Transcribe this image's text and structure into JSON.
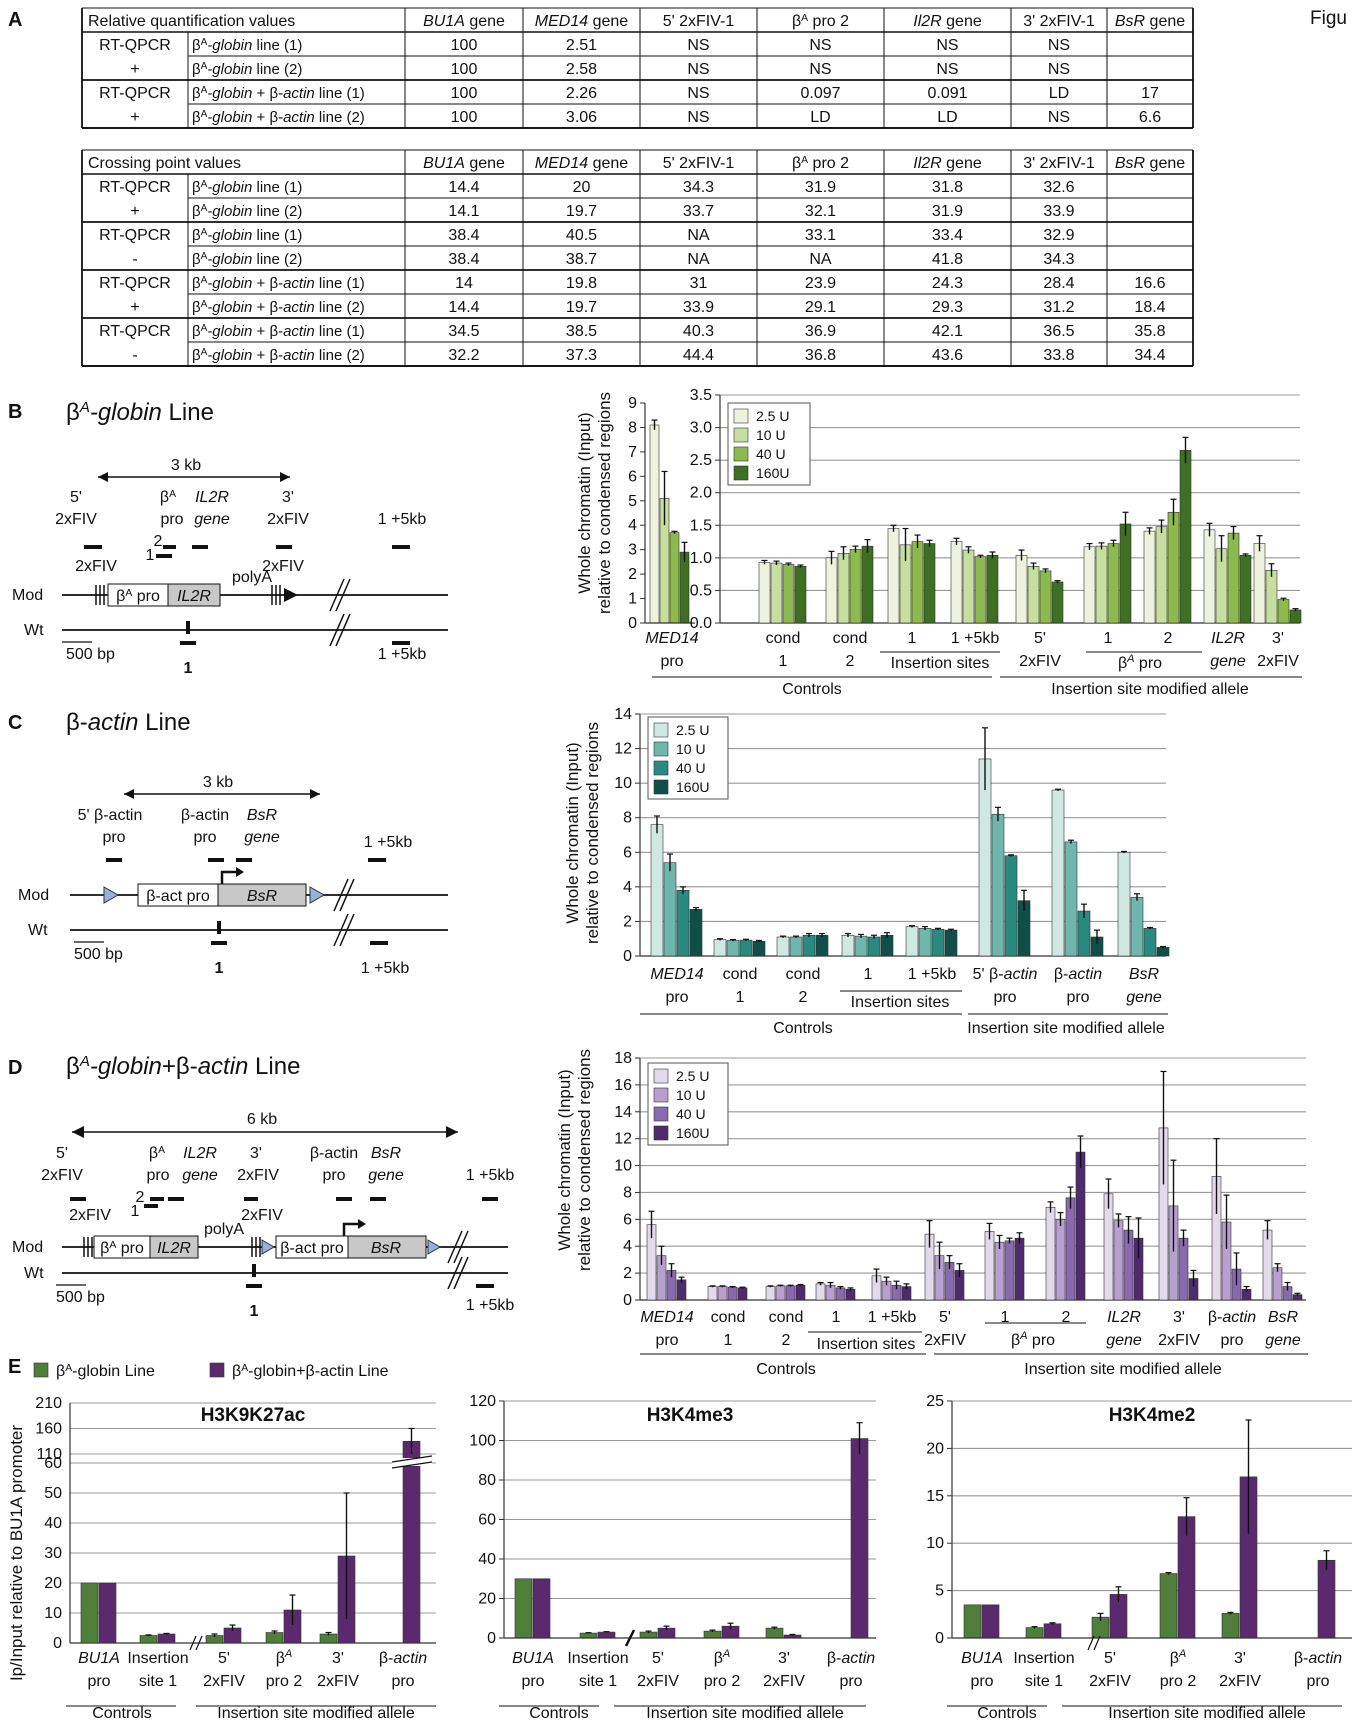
{
  "fig_label": "Figu",
  "panels": {
    "A": "A",
    "B": "B",
    "C": "C",
    "D": "D",
    "E": "E"
  },
  "tableA": {
    "header1": [
      "Relative quantification values",
      "BU1A gene",
      "MED14 gene",
      "5' 2xFIV-1",
      "β^A pro 2",
      "Il2R gene",
      "3' 2xFIV-1",
      "BsR gene"
    ],
    "rows1": [
      {
        "group": "RT-QPCR",
        "label": "β^A-globin line (1)",
        "vals": [
          "100",
          "2.51",
          "NS",
          "NS",
          "NS",
          "NS",
          ""
        ]
      },
      {
        "group": "+",
        "label": "β^A-globin line (2)",
        "vals": [
          "100",
          "2.58",
          "NS",
          "NS",
          "NS",
          "NS",
          ""
        ]
      },
      {
        "group": "RT-QPCR",
        "label": "β^A-globin + β-actin line (1)",
        "vals": [
          "100",
          "2.26",
          "NS",
          "0.097",
          "0.091",
          "LD",
          "17"
        ]
      },
      {
        "group": "+",
        "label": "β^A-globin + β-actin line (2)",
        "vals": [
          "100",
          "3.06",
          "NS",
          "LD",
          "LD",
          "NS",
          "6.6"
        ]
      }
    ],
    "header2": [
      "Crossing point values",
      "BU1A gene",
      "MED14 gene",
      "5' 2xFIV-1",
      "β^A pro 2",
      "Il2R gene",
      "3' 2xFIV-1",
      "BsR gene"
    ],
    "rows2": [
      {
        "group": "RT-QPCR",
        "label": "β^A-globin line (1)",
        "vals": [
          "14.4",
          "20",
          "34.3",
          "31.9",
          "31.8",
          "32.6",
          ""
        ]
      },
      {
        "group": "+",
        "label": "β^A-globin line (2)",
        "vals": [
          "14.1",
          "19.7",
          "33.7",
          "32.1",
          "31.9",
          "33.9",
          ""
        ]
      },
      {
        "group": "RT-QPCR",
        "label": "β^A-globin line (1)",
        "vals": [
          "38.4",
          "40.5",
          "NA",
          "33.1",
          "33.4",
          "32.9",
          ""
        ]
      },
      {
        "group": "-",
        "label": "β^A-globin line (2)",
        "vals": [
          "38.4",
          "38.7",
          "NA",
          "NA",
          "41.8",
          "34.3",
          ""
        ]
      },
      {
        "group": "RT-QPCR",
        "label": "β^A-globin + β-actin line (1)",
        "vals": [
          "14",
          "19.8",
          "31",
          "23.9",
          "24.3",
          "28.4",
          "16.6"
        ]
      },
      {
        "group": "+",
        "label": "β^A-globin + β-actin line (2)",
        "vals": [
          "14.4",
          "19.7",
          "33.9",
          "29.1",
          "29.3",
          "31.2",
          "18.4"
        ]
      },
      {
        "group": "RT-QPCR",
        "label": "β^A-globin + β-actin line (1)",
        "vals": [
          "34.5",
          "38.5",
          "40.3",
          "36.9",
          "42.1",
          "36.5",
          "35.8"
        ]
      },
      {
        "group": "-",
        "label": "β^A-globin + β-actin line (2)",
        "vals": [
          "32.2",
          "37.3",
          "44.4",
          "36.8",
          "43.6",
          "33.8",
          "34.4"
        ]
      }
    ]
  },
  "diagrams": {
    "B": {
      "title": "β^A-globin Line",
      "scale": "3 kb",
      "bar": "500 bp",
      "labels": [
        "5'",
        "2xFIV",
        "β^A",
        "pro",
        "IL2R",
        "gene",
        "3'",
        "2xFIV",
        "1 +5kb",
        "2",
        "1",
        "2xFIV",
        "2xFIV",
        "polyA",
        "β^A pro",
        "IL2R",
        "Mod",
        "Wt",
        "1",
        "1 +5kb"
      ]
    },
    "C": {
      "title": "β-actin Line",
      "scale": "3 kb",
      "bar": "500 bp",
      "labels": [
        "5' β-actin",
        "pro",
        "β-actin",
        "pro",
        "BsR",
        "gene",
        "1 +5kb",
        "β-act pro",
        "BsR",
        "Mod",
        "Wt",
        "1",
        "1 +5kb"
      ]
    },
    "D": {
      "title": "β^A-globin+β-actin Line",
      "scale": "6 kb",
      "bar": "500 bp",
      "labels": [
        "5'",
        "2xFIV",
        "β^A",
        "pro",
        "IL2R",
        "gene",
        "3'",
        "2xFIV",
        "β-actin",
        "pro",
        "BsR",
        "gene",
        "1 +5kb",
        "2",
        "1",
        "2xFIV",
        "2xFIV",
        "polyA",
        "β^A pro",
        "IL2R",
        "β-act pro",
        "BsR",
        "Mod",
        "Wt",
        "1",
        "1 +5kb"
      ]
    }
  },
  "chart_data": [
    {
      "id": "B",
      "type": "bar",
      "ylabel": [
        "Whole chromatin (Input)",
        "relative to condensed regions"
      ],
      "legend": [
        "2.5 U",
        "10 U",
        "40 U",
        "160U"
      ],
      "colors": [
        "#eef3e0",
        "#c6dea0",
        "#8dba4f",
        "#3f6f23"
      ],
      "inset": {
        "categories": [
          "MED14|pro"
        ],
        "ylim": [
          0,
          9
        ],
        "ticks": [
          0,
          1,
          2,
          3,
          4,
          5,
          6,
          7,
          8,
          9
        ],
        "values": [
          [
            8.1,
            5.1,
            3.7,
            2.9
          ]
        ],
        "err": [
          [
            0.2,
            1.1,
            0.05,
            0.4
          ]
        ]
      },
      "categories": [
        "cond|1",
        "cond|2",
        "1",
        "1 +5kb",
        "5'|2xFIV",
        "1",
        "2",
        "IL2R|gene",
        "3'|2xFIV"
      ],
      "ylim": [
        0,
        3.5
      ],
      "ticks": [
        "0.0",
        "0.5",
        "1.0",
        "1.5",
        "2.0",
        "2.5",
        "3.0",
        "3.5"
      ],
      "values": [
        [
          0.93,
          0.92,
          0.9,
          0.87
        ],
        [
          1.0,
          1.07,
          1.13,
          1.18
        ],
        [
          1.45,
          1.2,
          1.25,
          1.22
        ],
        [
          1.25,
          1.12,
          1.02,
          1.04
        ],
        [
          1.04,
          0.87,
          0.8,
          0.63
        ],
        [
          1.17,
          1.18,
          1.22,
          1.52
        ],
        [
          1.41,
          1.48,
          1.7,
          2.65
        ],
        [
          1.43,
          1.14,
          1.38,
          1.04
        ],
        [
          1.22,
          0.81,
          0.36,
          0.2
        ]
      ],
      "err": [
        [
          0.03,
          0.03,
          0.02,
          0.02
        ],
        [
          0.1,
          0.1,
          0.05,
          0.1
        ],
        [
          0.05,
          0.25,
          0.1,
          0.05
        ],
        [
          0.05,
          0.05,
          0.02,
          0.05
        ],
        [
          0.08,
          0.05,
          0.03,
          0.02
        ],
        [
          0.05,
          0.05,
          0.05,
          0.18
        ],
        [
          0.05,
          0.1,
          0.2,
          0.2
        ],
        [
          0.1,
          0.2,
          0.1,
          0.02
        ],
        [
          0.12,
          0.1,
          0.02,
          0.02
        ]
      ],
      "annot": [
        "Insertion sites",
        "β^A pro",
        "Controls",
        "Insertion site modified allele"
      ]
    },
    {
      "id": "C",
      "type": "bar",
      "ylabel": [
        "Whole chromatin (Input)",
        "relative to condensed regions"
      ],
      "legend": [
        "2.5 U",
        "10 U",
        "40 U",
        "160U"
      ],
      "colors": [
        "#cfe8e2",
        "#6fb7ac",
        "#2a8a80",
        "#0f4f48"
      ],
      "categories": [
        "MED14|pro",
        "cond|1",
        "cond|2",
        "1",
        "1 +5kb",
        "5' β-actin|pro",
        "β-actin|pro",
        "BsR|gene"
      ],
      "ylim": [
        0,
        14
      ],
      "ticks": [
        0,
        2,
        4,
        6,
        8,
        10,
        12,
        14
      ],
      "values": [
        [
          7.6,
          5.4,
          3.8,
          2.7
        ],
        [
          0.95,
          0.9,
          0.92,
          0.85
        ],
        [
          1.1,
          1.1,
          1.2,
          1.2
        ],
        [
          1.2,
          1.15,
          1.1,
          1.2
        ],
        [
          1.7,
          1.6,
          1.55,
          1.5
        ],
        [
          11.4,
          8.2,
          5.8,
          3.2
        ],
        [
          9.6,
          6.6,
          2.6,
          1.1
        ],
        [
          6.0,
          3.4,
          1.6,
          0.5
        ]
      ],
      "err": [
        [
          0.5,
          0.5,
          0.2,
          0.1
        ],
        [
          0.05,
          0.05,
          0.05,
          0.05
        ],
        [
          0.05,
          0.05,
          0.1,
          0.1
        ],
        [
          0.1,
          0.1,
          0.1,
          0.15
        ],
        [
          0.05,
          0.1,
          0.05,
          0.05
        ],
        [
          1.8,
          0.4,
          0.05,
          0.6
        ],
        [
          0.05,
          0.1,
          0.4,
          0.4
        ],
        [
          0.05,
          0.2,
          0.05,
          0.05
        ]
      ],
      "annot": [
        "Insertion sites",
        "Controls",
        "Insertion site modified allele"
      ]
    },
    {
      "id": "D",
      "type": "bar",
      "ylabel": [
        "Whole chromatin (Input)",
        "relative to condensed regions"
      ],
      "legend": [
        "2.5 U",
        "10 U",
        "40 U",
        "160U"
      ],
      "colors": [
        "#e2daeb",
        "#b7a0cf",
        "#8a6aae",
        "#4f2a6e"
      ],
      "categories": [
        "MED14|pro",
        "cond|1",
        "cond|2",
        "1",
        "1 +5kb",
        "5'|2xFIV",
        "1",
        "2",
        "IL2R|gene",
        "3'|2xFIV",
        "β-actin|pro",
        "BsR|gene"
      ],
      "ylim": [
        0,
        18
      ],
      "ticks": [
        0,
        2,
        4,
        6,
        8,
        10,
        12,
        14,
        16,
        18
      ],
      "values": [
        [
          5.6,
          3.3,
          2.2,
          1.5
        ],
        [
          1.0,
          1.0,
          0.95,
          0.9
        ],
        [
          1.0,
          1.05,
          1.05,
          1.1
        ],
        [
          1.2,
          1.1,
          0.9,
          0.8
        ],
        [
          1.8,
          1.4,
          1.1,
          1.0
        ],
        [
          4.9,
          3.3,
          2.8,
          2.2
        ],
        [
          5.1,
          4.3,
          4.4,
          4.6
        ],
        [
          6.9,
          6.0,
          7.6,
          11.0
        ],
        [
          7.9,
          5.9,
          5.2,
          4.6
        ],
        [
          12.8,
          7.0,
          4.6,
          1.6
        ],
        [
          9.2,
          5.8,
          2.3,
          0.8
        ],
        [
          5.2,
          2.4,
          1.0,
          0.4
        ]
      ],
      "err": [
        [
          1.0,
          0.7,
          0.5,
          0.2
        ],
        [
          0.05,
          0.05,
          0.05,
          0.05
        ],
        [
          0.05,
          0.05,
          0.05,
          0.05
        ],
        [
          0.1,
          0.2,
          0.1,
          0.1
        ],
        [
          0.5,
          0.3,
          0.3,
          0.2
        ],
        [
          1.0,
          1.0,
          0.5,
          0.5
        ],
        [
          0.6,
          0.5,
          0.2,
          0.4
        ],
        [
          0.4,
          0.5,
          0.8,
          1.2
        ],
        [
          1.1,
          0.5,
          1.0,
          1.5
        ],
        [
          4.2,
          3.4,
          0.6,
          0.6
        ],
        [
          2.8,
          2.0,
          1.2,
          0.2
        ],
        [
          0.7,
          0.3,
          0.3,
          0.1
        ]
      ],
      "annot": [
        "Insertion sites",
        "β^A pro",
        "Controls",
        "Insertion site modified allele"
      ]
    },
    {
      "id": "E",
      "type": "bar",
      "legend": [
        "β^A-globin Line",
        "β^A-globin+β-actin Line"
      ],
      "colors": [
        "#4f7d3a",
        "#5b2a6e"
      ],
      "ylabel": [
        "Ip/Input relative to BU1A promoter"
      ],
      "categories": [
        "BU1A|pro",
        "Insertion|site 1",
        "5'|2xFIV",
        "β^A|pro 2",
        "3'|2xFIV",
        "β-actin|pro"
      ],
      "annot": [
        "Controls",
        "Insertion site modified allele"
      ],
      "charts": [
        {
          "title": "H3K9K27ac",
          "ticks_low": [
            0,
            10,
            20,
            30,
            40,
            50,
            60
          ],
          "ticks_high": [
            110,
            160,
            210
          ],
          "values": [
            [
              20,
              20
            ],
            [
              2.5,
              3
            ],
            [
              2.5,
              5
            ],
            [
              3.5,
              11
            ],
            [
              3,
              29
            ],
            [
              null,
              135
            ]
          ],
          "err": [
            [
              0,
              0
            ],
            [
              0.2,
              0.2
            ],
            [
              0.5,
              1
            ],
            [
              0.5,
              5
            ],
            [
              0.5,
              21
            ],
            [
              null,
              25
            ]
          ]
        },
        {
          "title": "H3K4me3",
          "ylim": [
            0,
            120
          ],
          "ticks": [
            0,
            20,
            40,
            60,
            80,
            100,
            120
          ],
          "values": [
            [
              30,
              30
            ],
            [
              2.5,
              3
            ],
            [
              3,
              5
            ],
            [
              3.5,
              6
            ],
            [
              5,
              1.5
            ],
            [
              null,
              101
            ]
          ],
          "err": [
            [
              0,
              0
            ],
            [
              0.2,
              0.2
            ],
            [
              0.5,
              1
            ],
            [
              0.5,
              1.5
            ],
            [
              0.5,
              0.3
            ],
            [
              null,
              8
            ]
          ]
        },
        {
          "title": "H3K4me2",
          "ylim": [
            0,
            25
          ],
          "ticks": [
            0,
            5,
            10,
            15,
            20,
            25
          ],
          "values": [
            [
              3.5,
              3.5
            ],
            [
              1.1,
              1.5
            ],
            [
              2.2,
              4.6
            ],
            [
              6.8,
              12.8
            ],
            [
              2.6,
              17
            ],
            [
              null,
              8.2
            ]
          ],
          "err": [
            [
              0,
              0
            ],
            [
              0.1,
              0.1
            ],
            [
              0.4,
              0.8
            ],
            [
              0.1,
              2
            ],
            [
              0.1,
              6
            ],
            [
              null,
              1
            ]
          ]
        }
      ]
    }
  ]
}
